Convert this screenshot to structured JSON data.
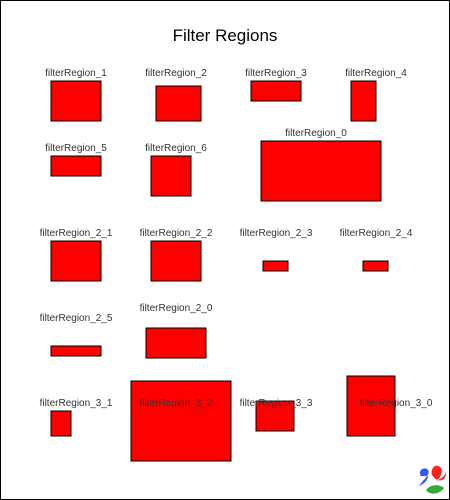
{
  "page": {
    "title": "Filter Regions",
    "region_fill": "#ff0000",
    "border_color": "#000000",
    "logo": {
      "icon": "batik-squiggle-logo",
      "colors": [
        "#3355ff",
        "#ff2222",
        "#33aa33"
      ]
    }
  },
  "regions": [
    {
      "label": "filterRegion_1"
    },
    {
      "label": "filterRegion_2"
    },
    {
      "label": "filterRegion_3"
    },
    {
      "label": "filterRegion_4"
    },
    {
      "label": "filterRegion_5"
    },
    {
      "label": "filterRegion_6"
    },
    {
      "label": "filterRegion_0"
    },
    {
      "label": "filterRegion_2_1"
    },
    {
      "label": "filterRegion_2_2"
    },
    {
      "label": "filterRegion_2_3"
    },
    {
      "label": "filterRegion_2_4"
    },
    {
      "label": "filterRegion_2_5"
    },
    {
      "label": "filterRegion_2_0"
    },
    {
      "label": "filterRegion_3_1"
    },
    {
      "label": "filterRegion_3_2"
    },
    {
      "label": "filterRegion_3_3"
    },
    {
      "label": "filterRegion_3_0"
    }
  ]
}
